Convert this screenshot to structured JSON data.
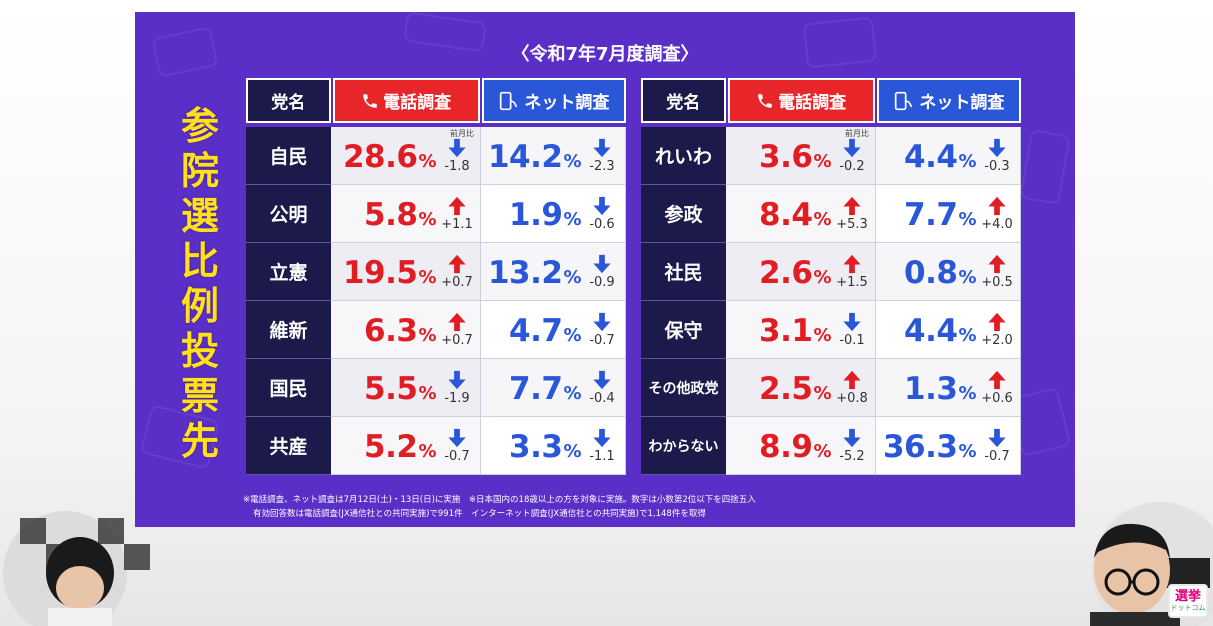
{
  "subtitle": "〈令和7年7月度調査〉",
  "vertical_title": [
    "参",
    "院",
    "選",
    "比",
    "例",
    "投",
    "票",
    "先"
  ],
  "headers": {
    "party": "党名",
    "phone": "電話調査",
    "net": "ネット調査"
  },
  "prev_label": "前月比",
  "colors": {
    "background": "#5a2fc7",
    "phone": "#e8262a",
    "net": "#2a57d8",
    "party_cell": "#1c1a4b",
    "title": "#ffe01a"
  },
  "left_rows": [
    {
      "party": "自民",
      "phone": "28.6",
      "phone_dir": "down",
      "phone_chg": "-1.8",
      "net": "14.2",
      "net_dir": "down",
      "net_chg": "-2.3"
    },
    {
      "party": "公明",
      "phone": "5.8",
      "phone_dir": "up",
      "phone_chg": "+1.1",
      "net": "1.9",
      "net_dir": "down",
      "net_chg": "-0.6"
    },
    {
      "party": "立憲",
      "phone": "19.5",
      "phone_dir": "up",
      "phone_chg": "+0.7",
      "net": "13.2",
      "net_dir": "down",
      "net_chg": "-0.9"
    },
    {
      "party": "維新",
      "phone": "6.3",
      "phone_dir": "up",
      "phone_chg": "+0.7",
      "net": "4.7",
      "net_dir": "down",
      "net_chg": "-0.7"
    },
    {
      "party": "国民",
      "phone": "5.5",
      "phone_dir": "down",
      "phone_chg": "-1.9",
      "net": "7.7",
      "net_dir": "down",
      "net_chg": "-0.4"
    },
    {
      "party": "共産",
      "phone": "5.2",
      "phone_dir": "down",
      "phone_chg": "-0.7",
      "net": "3.3",
      "net_dir": "down",
      "net_chg": "-1.1"
    }
  ],
  "right_rows": [
    {
      "party": "れいわ",
      "phone": "3.6",
      "phone_dir": "down",
      "phone_chg": "-0.2",
      "net": "4.4",
      "net_dir": "down",
      "net_chg": "-0.3"
    },
    {
      "party": "参政",
      "phone": "8.4",
      "phone_dir": "up",
      "phone_chg": "+5.3",
      "net": "7.7",
      "net_dir": "up",
      "net_chg": "+4.0"
    },
    {
      "party": "社民",
      "phone": "2.6",
      "phone_dir": "up",
      "phone_chg": "+1.5",
      "net": "0.8",
      "net_dir": "up",
      "net_chg": "+0.5"
    },
    {
      "party": "保守",
      "phone": "3.1",
      "phone_dir": "down",
      "phone_chg": "-0.1",
      "net": "4.4",
      "net_dir": "up",
      "net_chg": "+2.0"
    },
    {
      "party": "その他政党",
      "phone": "2.5",
      "phone_dir": "up",
      "phone_chg": "+0.8",
      "net": "1.3",
      "net_dir": "up",
      "net_chg": "+0.6"
    },
    {
      "party": "わからない",
      "phone": "8.9",
      "phone_dir": "down",
      "phone_chg": "-5.2",
      "net": "36.3",
      "net_dir": "down",
      "net_chg": "-0.7"
    }
  ],
  "pct_symbol": "%",
  "footnote_lines": [
    "※電話調査、ネット調査は7月12日(土)・13日(日)に実施　※日本国内の18歳以上の方を対象に実施。数字は小数第2位以下を四捨五入",
    "有効回答数は電話調査(JX通信社との共同実施)で991件　インターネット調査(JX通信社との共同実施)で1,148件を取得"
  ],
  "logo": {
    "line1": "選挙",
    "line2": "ドットコム"
  }
}
